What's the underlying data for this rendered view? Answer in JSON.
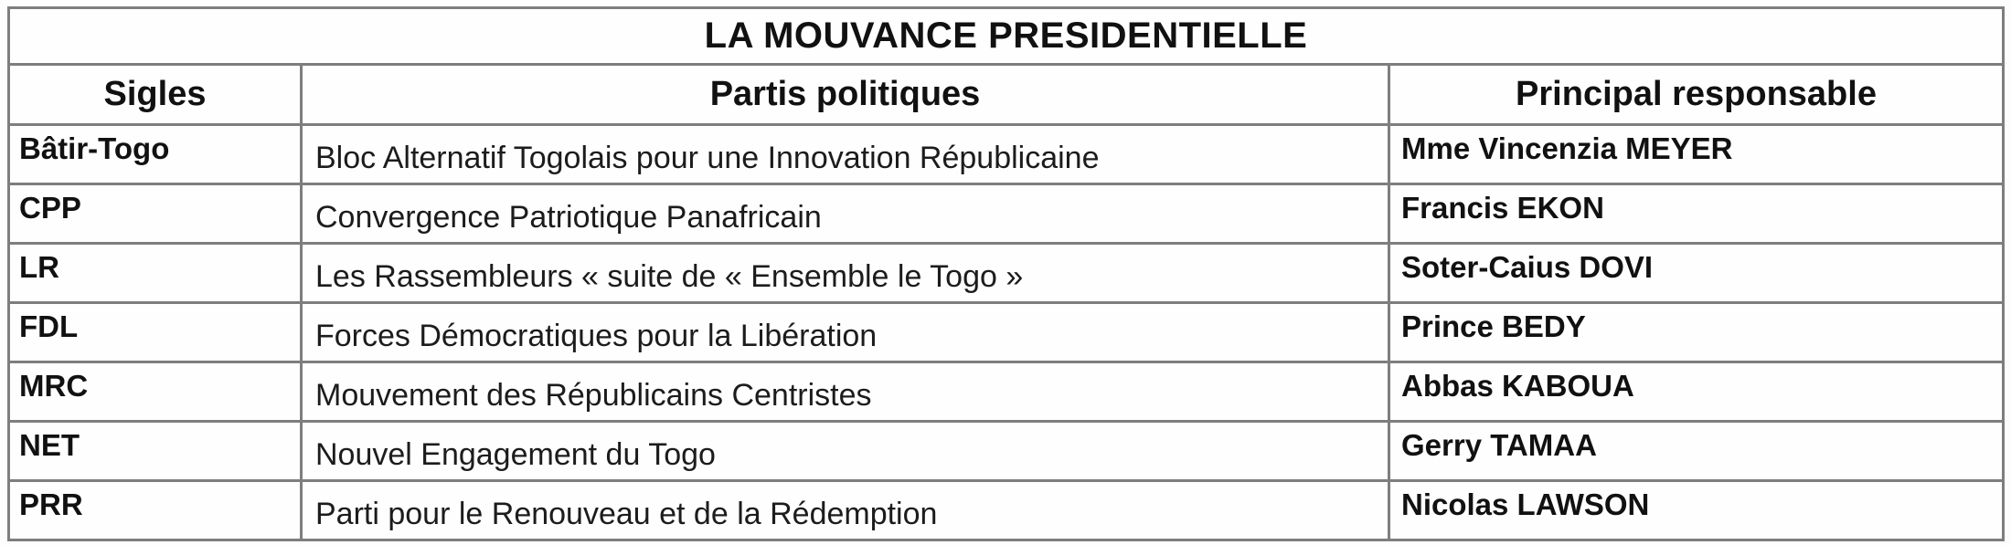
{
  "table": {
    "title": "LA MOUVANCE PRESIDENTIELLE",
    "headers": {
      "sigles": "Sigles",
      "partis": "Partis politiques",
      "responsable": "Principal responsable"
    },
    "rows": [
      {
        "sigle": "Bâtir-Togo",
        "parti": "Bloc Alternatif Togolais pour une Innovation Républicaine",
        "responsable": "Mme Vincenzia MEYER"
      },
      {
        "sigle": "CPP",
        "parti": "Convergence Patriotique Panafricain",
        "responsable": "Francis EKON"
      },
      {
        "sigle": "LR",
        "parti": "Les Rassembleurs « suite de « Ensemble le Togo »",
        "responsable": "Soter-Caius DOVI"
      },
      {
        "sigle": "FDL",
        "parti": "Forces Démocratiques pour la Libération",
        "responsable": "Prince BEDY"
      },
      {
        "sigle": "MRC",
        "parti": "Mouvement des Républicains Centristes",
        "responsable": "Abbas KABOUA"
      },
      {
        "sigle": "NET",
        "parti": "Nouvel Engagement du Togo",
        "responsable": "Gerry TAMAA"
      },
      {
        "sigle": "PRR",
        "parti": "Parti pour le Renouveau et de la Rédemption",
        "responsable": "Nicolas LAWSON"
      }
    ]
  },
  "colors": {
    "border": "#7e7e7e",
    "text": "#111111",
    "background": "#fefefe"
  }
}
